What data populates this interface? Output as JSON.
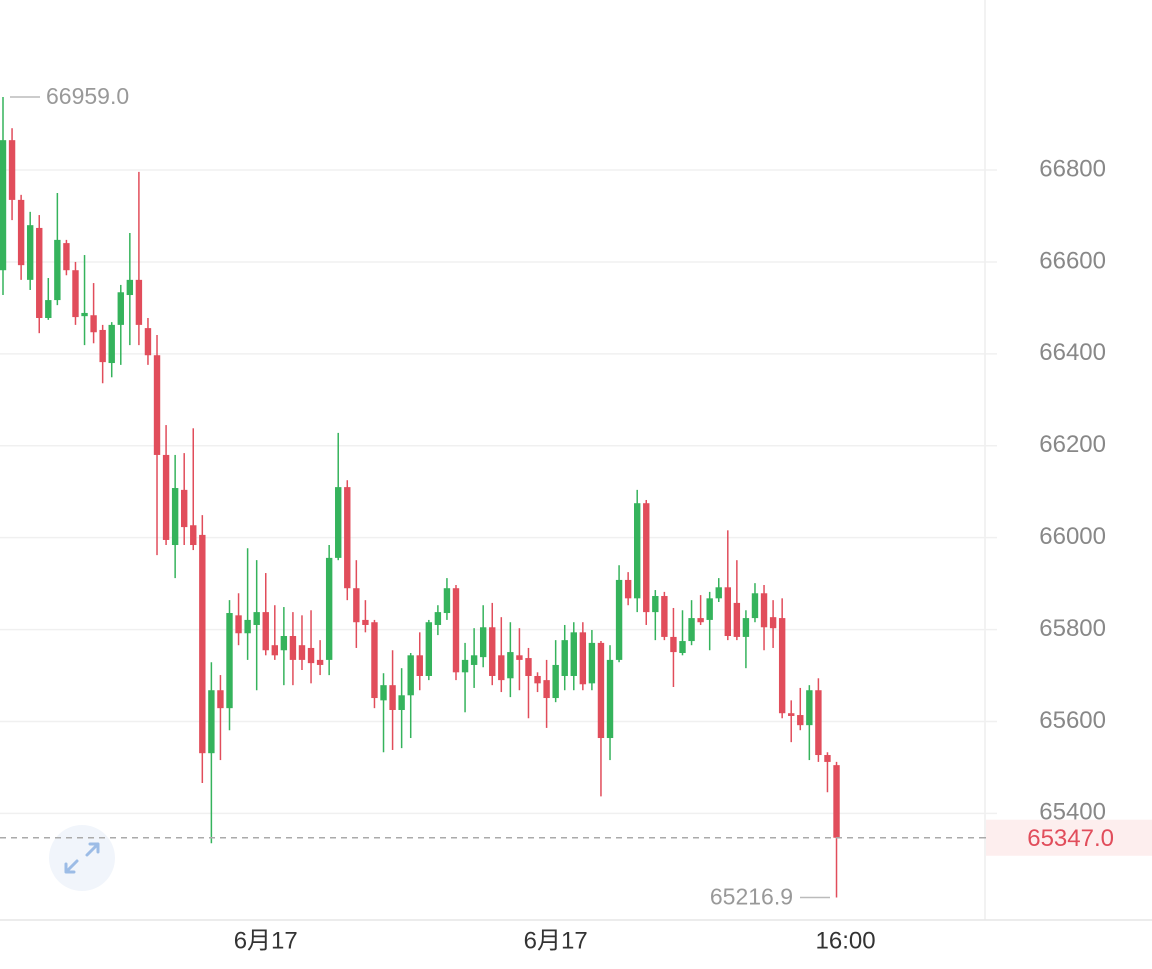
{
  "chart_data": {
    "type": "candlestick",
    "rising_color": "#35b35c",
    "falling_color": "#e14d5b",
    "open": [
      66582,
      66865,
      66735,
      66561,
      66674,
      66478,
      66517,
      66641,
      66582,
      66482,
      66484,
      66452,
      66380,
      66463,
      66528,
      66561,
      66456,
      66397,
      66180,
      65984,
      66104,
      66027,
      66006,
      65531,
      65668,
      65629,
      65831,
      65792,
      65810,
      65838,
      65766,
      65755,
      65786,
      65766,
      65760,
      65734,
      65734,
      65956,
      66110,
      65890,
      65821,
      65816,
      65646,
      65679,
      65625,
      65657,
      65744,
      65699,
      65810,
      65836,
      65890,
      65707,
      65723,
      65740,
      65805,
      65744,
      65694,
      65744,
      65738,
      65699,
      65690,
      65651,
      65699,
      65699,
      65794,
      65683,
      65771,
      65564,
      65734,
      65908,
      65868,
      66075,
      65838,
      65873,
      65784,
      65749,
      65775,
      65825,
      65821,
      65868,
      65892,
      65858,
      65784,
      65825,
      65879,
      65827,
      65825,
      65618,
      65614,
      65592,
      65668,
      65527,
      65505
    ],
    "high": [
      66959,
      66891,
      66746,
      66709,
      66702,
      66565,
      66750,
      66648,
      66600,
      66615,
      66554,
      66463,
      66469,
      66550,
      66663,
      66796,
      66478,
      66441,
      66245,
      66180,
      66184,
      66238,
      66049,
      65729,
      65701,
      65864,
      65879,
      65977,
      65951,
      65923,
      65853,
      65849,
      65838,
      65831,
      65842,
      65777,
      65984,
      66228,
      66125,
      65951,
      65864,
      65821,
      65705,
      65755,
      65716,
      65749,
      65794,
      65821,
      65853,
      65912,
      65897,
      65771,
      65803,
      65853,
      65858,
      65827,
      65816,
      65803,
      65760,
      65707,
      65734,
      65777,
      65810,
      65816,
      65816,
      65799,
      65775,
      65766,
      65940,
      65925,
      66104,
      66082,
      65886,
      65882,
      65847,
      65842,
      65864,
      65875,
      65882,
      65912,
      66016,
      65951,
      65842,
      65901,
      65897,
      65864,
      65868,
      65646,
      65673,
      65679,
      65694,
      65533,
      65512
    ],
    "low": [
      66528,
      66691,
      66561,
      66539,
      66445,
      66474,
      66506,
      66571,
      66463,
      66419,
      66423,
      66336,
      66349,
      66376,
      66419,
      66419,
      66376,
      65962,
      65984,
      65912,
      65984,
      65973,
      65466,
      65335,
      65516,
      65581,
      65766,
      65734,
      65668,
      65744,
      65734,
      65679,
      65679,
      65712,
      65683,
      65701,
      65701,
      65951,
      65864,
      65760,
      65794,
      65629,
      65533,
      65538,
      65542,
      65564,
      65668,
      65690,
      65788,
      65821,
      65690,
      65620,
      65673,
      65718,
      65679,
      65664,
      65653,
      65668,
      65607,
      65664,
      65586,
      65642,
      65668,
      65668,
      65668,
      65668,
      65437,
      65516,
      65729,
      65853,
      65838,
      65810,
      65777,
      65777,
      65675,
      65744,
      65766,
      65810,
      65755,
      65860,
      65777,
      65777,
      65716,
      65816,
      65755,
      65760,
      65607,
      65555,
      65581,
      65516,
      65512,
      65446,
      65216.9
    ],
    "close": [
      66865,
      66735,
      66593,
      66680,
      66478,
      66517,
      66648,
      66582,
      66480,
      66489,
      66447,
      66382,
      66463,
      66534,
      66561,
      66463,
      66397,
      66180,
      65995,
      66108,
      66023,
      65984,
      65531,
      65668,
      65629,
      65836,
      65792,
      65821,
      65838,
      65755,
      65744,
      65786,
      65734,
      65734,
      65727,
      65723,
      65956,
      66110,
      65890,
      65816,
      65810,
      65651,
      65679,
      65625,
      65657,
      65744,
      65699,
      65816,
      65838,
      65890,
      65707,
      65734,
      65744,
      65805,
      65699,
      65690,
      65751,
      65734,
      65699,
      65683,
      65651,
      65723,
      65777,
      65794,
      65681,
      65771,
      65564,
      65734,
      65908,
      65868,
      66075,
      65838,
      65873,
      65784,
      65751,
      65775,
      65825,
      65816,
      65868,
      65892,
      65786,
      65784,
      65825,
      65879,
      65805,
      65803,
      65618,
      65612,
      65592,
      65668,
      65527,
      65512,
      65347
    ],
    "ylim": [
      65168,
      67170
    ],
    "yticks": [
      65400,
      65600,
      65800,
      66000,
      66200,
      66400,
      66600,
      66800
    ],
    "grid": true,
    "xticks": [
      {
        "value": 29,
        "label": "6月17"
      },
      {
        "value": 61,
        "label": "6月17"
      },
      {
        "value": 93,
        "label": "16:00"
      }
    ],
    "high_label": {
      "value": 66959,
      "label": "66959.0"
    },
    "low_label": {
      "value": 65216.9,
      "label": "65216.9"
    },
    "last_price": {
      "value": 65347,
      "label": "65347.0"
    }
  }
}
